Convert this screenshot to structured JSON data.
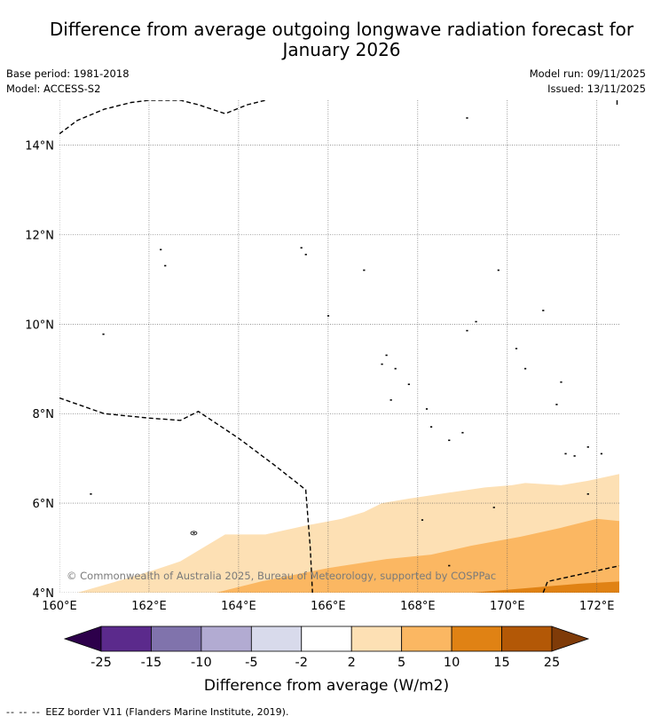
{
  "header": {
    "title_line1": "Difference from average outgoing longwave radiation forecast for",
    "title_line2": "January 2026",
    "base_period": "Base period: 1981-2018",
    "model": "Model: ACCESS-S2",
    "model_run": "Model run: 09/11/2025",
    "issued": "Issued: 13/11/2025"
  },
  "map": {
    "lon_range": [
      160,
      172.5
    ],
    "lat_range": [
      4,
      15
    ],
    "lon_ticks": [
      {
        "value": 160,
        "label": "160°E"
      },
      {
        "value": 162,
        "label": "162°E"
      },
      {
        "value": 164,
        "label": "164°E"
      },
      {
        "value": 166,
        "label": "166°E"
      },
      {
        "value": 168,
        "label": "168°E"
      },
      {
        "value": 170,
        "label": "170°E"
      },
      {
        "value": 172,
        "label": "172°E"
      }
    ],
    "lat_ticks": [
      {
        "value": 14,
        "label": "14°N"
      },
      {
        "value": 12,
        "label": "12°N"
      },
      {
        "value": 10,
        "label": "10°N"
      },
      {
        "value": 8,
        "label": "8°N"
      },
      {
        "value": 6,
        "label": "6°N"
      },
      {
        "value": 4,
        "label": "4°N"
      }
    ],
    "gridlines": true,
    "copyright": "© Commonwealth of Australia 2025, Bureau of Meteorology, supported by COSPPac",
    "anomaly_bands": [
      {
        "range": "2 to 5",
        "color": "#fde0b4",
        "boundary": [
          [
            160.4,
            4
          ],
          [
            161.1,
            4.2
          ],
          [
            162.1,
            4.5
          ],
          [
            162.7,
            4.7
          ],
          [
            163.7,
            5.3
          ],
          [
            164.6,
            5.3
          ],
          [
            165.5,
            5.5
          ],
          [
            166.3,
            5.65
          ],
          [
            166.8,
            5.8
          ],
          [
            167.2,
            6.0
          ],
          [
            167.8,
            6.1
          ],
          [
            168.8,
            6.25
          ],
          [
            169.5,
            6.35
          ],
          [
            170.1,
            6.4
          ],
          [
            170.4,
            6.45
          ],
          [
            171.2,
            6.4
          ],
          [
            171.8,
            6.5
          ],
          [
            172.5,
            6.65
          ]
        ]
      },
      {
        "range": "5 to 10",
        "color": "#fbb762",
        "boundary": [
          [
            163.5,
            4
          ],
          [
            164.5,
            4.25
          ],
          [
            166.0,
            4.55
          ],
          [
            167.3,
            4.75
          ],
          [
            168.3,
            4.85
          ],
          [
            169.2,
            5.05
          ],
          [
            170.3,
            5.25
          ],
          [
            171.2,
            5.45
          ],
          [
            172.0,
            5.65
          ],
          [
            172.5,
            5.6
          ]
        ]
      },
      {
        "range": "10 to 15",
        "color": "#e08214",
        "boundary": [
          [
            169.2,
            4
          ],
          [
            170.4,
            4.1
          ],
          [
            171.6,
            4.2
          ],
          [
            172.5,
            4.25
          ]
        ]
      }
    ],
    "eez_borders": [
      [
        [
          160,
          14.25
        ],
        [
          160.4,
          14.55
        ],
        [
          161,
          14.8
        ],
        [
          161.6,
          14.95
        ],
        [
          162,
          15
        ],
        [
          162.7,
          15
        ],
        [
          163.1,
          14.9
        ],
        [
          163.7,
          14.7
        ],
        [
          164.2,
          14.9
        ],
        [
          164.6,
          15
        ]
      ],
      [
        [
          160,
          8.35
        ],
        [
          161,
          8.0
        ],
        [
          162,
          7.9
        ],
        [
          162.7,
          7.85
        ],
        [
          163.1,
          8.05
        ],
        [
          164,
          7.45
        ],
        [
          164.8,
          6.85
        ],
        [
          165.5,
          6.3
        ],
        [
          165.6,
          5.0
        ],
        [
          165.65,
          4
        ]
      ],
      [
        [
          170.8,
          4
        ],
        [
          170.9,
          4.25
        ],
        [
          172.5,
          4.6
        ]
      ],
      [
        [
          172.45,
          15
        ],
        [
          172.45,
          14.85
        ]
      ]
    ],
    "islands": [
      [
        160.98,
        9.77
      ],
      [
        162.26,
        11.66
      ],
      [
        162.36,
        11.3
      ],
      [
        165.4,
        11.7
      ],
      [
        165.5,
        11.55
      ],
      [
        166.0,
        10.18
      ],
      [
        166.8,
        11.2
      ],
      [
        167.3,
        9.3
      ],
      [
        167.5,
        9.0
      ],
      [
        167.8,
        8.65
      ],
      [
        167.4,
        8.3
      ],
      [
        168.2,
        8.1
      ],
      [
        168.3,
        7.7
      ],
      [
        168.7,
        7.4
      ],
      [
        169.0,
        7.57
      ],
      [
        168.1,
        5.62
      ],
      [
        169.7,
        5.9
      ],
      [
        170.2,
        9.45
      ],
      [
        170.4,
        9.0
      ],
      [
        170.8,
        10.3
      ],
      [
        169.3,
        10.05
      ],
      [
        169.1,
        9.85
      ],
      [
        169.8,
        11.2
      ],
      [
        169.1,
        14.6
      ],
      [
        167.2,
        9.1
      ],
      [
        171.2,
        8.7
      ],
      [
        171.1,
        8.2
      ],
      [
        171.8,
        7.25
      ],
      [
        172.1,
        7.1
      ],
      [
        171.3,
        7.1
      ],
      [
        171.5,
        7.05
      ],
      [
        171.8,
        6.2
      ],
      [
        160.7,
        6.2
      ],
      [
        163.0,
        5.33
      ],
      [
        168.7,
        4.6
      ]
    ]
  },
  "colorbar": {
    "label": "Difference from average (W/m2)",
    "tick_labels": [
      "-25",
      "-15",
      "-10",
      "-5",
      "-2",
      "2",
      "5",
      "10",
      "15",
      "25"
    ],
    "low_extension_color": "#2d004b",
    "high_extension_color": "#7f3b08",
    "colors": [
      "#5b2a8c",
      "#8073ac",
      "#b2abd2",
      "#d8daeb",
      "#ffffff",
      "#fde0b4",
      "#fbb762",
      "#e08214",
      "#b35806"
    ]
  },
  "footnote": {
    "legend_symbol": "-- -- --",
    "text": "EEZ border V11 (Flanders Marine Institute, 2019)."
  }
}
